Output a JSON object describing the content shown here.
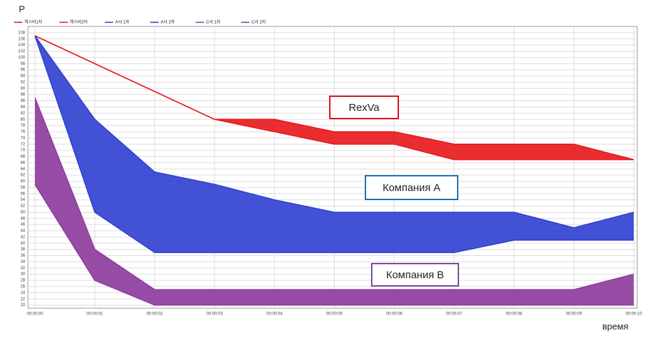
{
  "chart_data": {
    "type": "area-band",
    "y_label": "Р",
    "x_label": "время",
    "categories": [
      "00:00:00",
      "00:00:01",
      "00:00:02",
      "00:00:03",
      "00:00:04",
      "00:00:05",
      "00:00:06",
      "00:00:07",
      "00:00:08",
      "00:00:09",
      "00:00:10"
    ],
    "series": [
      {
        "name": "렉스바1차",
        "color": "#e8161b",
        "values": [
          107,
          98,
          89,
          80,
          80,
          76,
          76,
          72,
          72,
          72,
          67
        ]
      },
      {
        "name": "렉스바2차",
        "color": "#e8161b",
        "values": [
          107,
          98,
          89,
          80,
          76,
          72,
          72,
          67,
          67,
          67,
          67
        ]
      },
      {
        "name": "A사 1차",
        "color": "#2f3fd0",
        "values": [
          107,
          80,
          63,
          59,
          54,
          50,
          50,
          50,
          50,
          45,
          50
        ]
      },
      {
        "name": "A사 2차",
        "color": "#2f3fd0",
        "values": [
          107,
          50,
          37,
          37,
          37,
          37,
          37,
          37,
          41,
          41,
          41
        ]
      },
      {
        "name": "C사 1차",
        "color": "#8c3a9c",
        "values": [
          87,
          38,
          25,
          25,
          25,
          25,
          25,
          25,
          25,
          25,
          30
        ]
      },
      {
        "name": "C사 2차",
        "color": "#8c3a9c",
        "values": [
          59,
          28,
          20,
          20,
          20,
          20,
          20,
          20,
          20,
          20,
          20
        ]
      }
    ],
    "ylim": [
      19,
      110
    ],
    "yticks": [
      20,
      22,
      24,
      26,
      28,
      30,
      32,
      34,
      36,
      38,
      40,
      42,
      44,
      46,
      48,
      50,
      52,
      54,
      56,
      58,
      60,
      62,
      64,
      66,
      68,
      70,
      72,
      74,
      76,
      78,
      80,
      82,
      84,
      86,
      88,
      90,
      92,
      94,
      96,
      98,
      100,
      102,
      104,
      106,
      108
    ],
    "grid": true,
    "annotations": [
      {
        "text": "RexVa",
        "color": "#d9141b"
      },
      {
        "text": "Компания А",
        "color": "#1f6fb5"
      },
      {
        "text": "Компания В",
        "color": "#7b4a9c"
      }
    ]
  }
}
